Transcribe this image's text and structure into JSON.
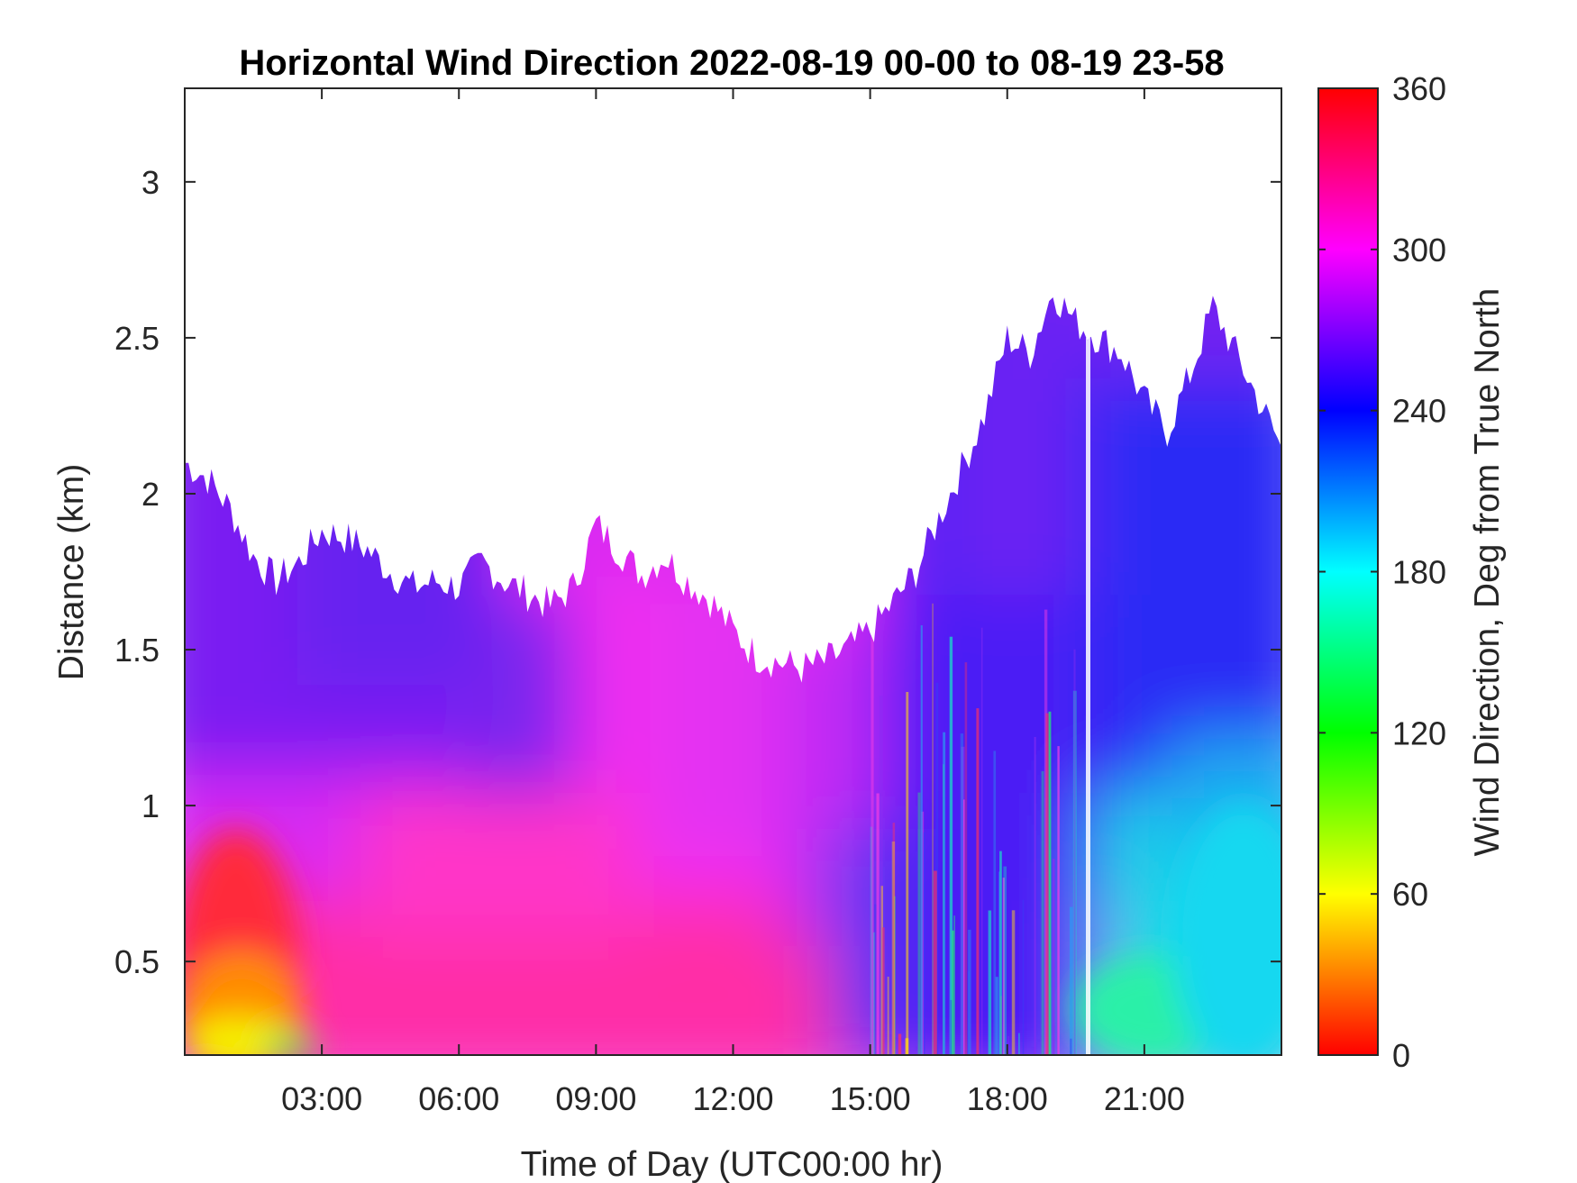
{
  "chart_data": {
    "type": "heatmap",
    "title": "Horizontal Wind Direction 2022-08-19 00-00 to 08-19 23-58",
    "xlabel": "Time of Day (UTC00:00 hr)",
    "ylabel": "Distance (km)",
    "colorbar_label": "Wind Direction, Deg from True North",
    "colormap": "hsv-like: 0 red, 60 yellow, 120 green, 180 cyan, 240 blue, 300 magenta, 360 red",
    "xlim_hours": [
      0,
      24
    ],
    "ylim_km": [
      0.2,
      3.3
    ],
    "clim_deg": [
      0,
      360
    ],
    "x_ticks": [
      {
        "hour": 3,
        "label": "03:00"
      },
      {
        "hour": 6,
        "label": "06:00"
      },
      {
        "hour": 9,
        "label": "09:00"
      },
      {
        "hour": 12,
        "label": "12:00"
      },
      {
        "hour": 15,
        "label": "15:00"
      },
      {
        "hour": 18,
        "label": "18:00"
      },
      {
        "hour": 21,
        "label": "21:00"
      }
    ],
    "y_ticks": [
      {
        "km": 0.5,
        "label": "0.5"
      },
      {
        "km": 1,
        "label": "1"
      },
      {
        "km": 1.5,
        "label": "1.5"
      },
      {
        "km": 2,
        "label": "2"
      },
      {
        "km": 2.5,
        "label": "2.5"
      },
      {
        "km": 3,
        "label": "3"
      }
    ],
    "colorbar_ticks": [
      {
        "deg": 0,
        "label": "0"
      },
      {
        "deg": 60,
        "label": "60"
      },
      {
        "deg": 120,
        "label": "120"
      },
      {
        "deg": 180,
        "label": "180"
      },
      {
        "deg": 240,
        "label": "240"
      },
      {
        "deg": 300,
        "label": "300"
      },
      {
        "deg": 360,
        "label": "360"
      }
    ],
    "data_top_km": {
      "hours": [
        0,
        0.5,
        1,
        1.5,
        2,
        2.5,
        3,
        3.5,
        4,
        4.5,
        5,
        5.5,
        6,
        6.5,
        7,
        7.5,
        8,
        8.5,
        9,
        9.5,
        10,
        10.5,
        11,
        11.5,
        12,
        12.5,
        13,
        13.5,
        14,
        14.5,
        15,
        15.5,
        16,
        16.5,
        17,
        17.5,
        18,
        18.5,
        19,
        19.5,
        20,
        20.5,
        21,
        21.5,
        22,
        22.5,
        23,
        23.5,
        24
      ],
      "km": [
        2.1,
        2.05,
        1.95,
        1.8,
        1.72,
        1.78,
        1.88,
        1.86,
        1.82,
        1.75,
        1.7,
        1.72,
        1.7,
        1.78,
        1.72,
        1.68,
        1.64,
        1.7,
        1.9,
        1.82,
        1.74,
        1.8,
        1.72,
        1.66,
        1.56,
        1.48,
        1.46,
        1.44,
        1.46,
        1.5,
        1.56,
        1.65,
        1.75,
        1.92,
        2.08,
        2.25,
        2.5,
        2.45,
        2.65,
        2.55,
        2.5,
        2.45,
        2.3,
        2.2,
        2.38,
        2.6,
        2.45,
        2.3,
        2.15
      ]
    },
    "regions": [
      {
        "hours": [
          0,
          6
        ],
        "km": [
          0.2,
          2.0
        ],
        "deg": "~260-320, blue-violet above 1.2 km, magenta below"
      },
      {
        "hours": [
          0.5,
          2.5
        ],
        "km": [
          0.2,
          0.7
        ],
        "deg": "~0-60, red to yellow near the surface"
      },
      {
        "hours": [
          6,
          15
        ],
        "km": [
          0.2,
          1.8
        ],
        "deg": "~290-340, mostly magenta, pink near the surface"
      },
      {
        "hours": [
          6.5,
          8.5
        ],
        "km": [
          0.7,
          1.6
        ],
        "deg": "~270, purple-blue"
      },
      {
        "hours": [
          15,
          19.5
        ],
        "km": [
          0.2,
          2.6
        ],
        "deg": "~240-280 with streaks of ~60-180"
      },
      {
        "hours": [
          19.7,
          24
        ],
        "km": [
          1.0,
          2.6
        ],
        "deg": "~240-260, blue"
      },
      {
        "hours": [
          19.7,
          24
        ],
        "km": [
          0.2,
          1.0
        ],
        "deg": "~170-200, cyan"
      }
    ]
  }
}
